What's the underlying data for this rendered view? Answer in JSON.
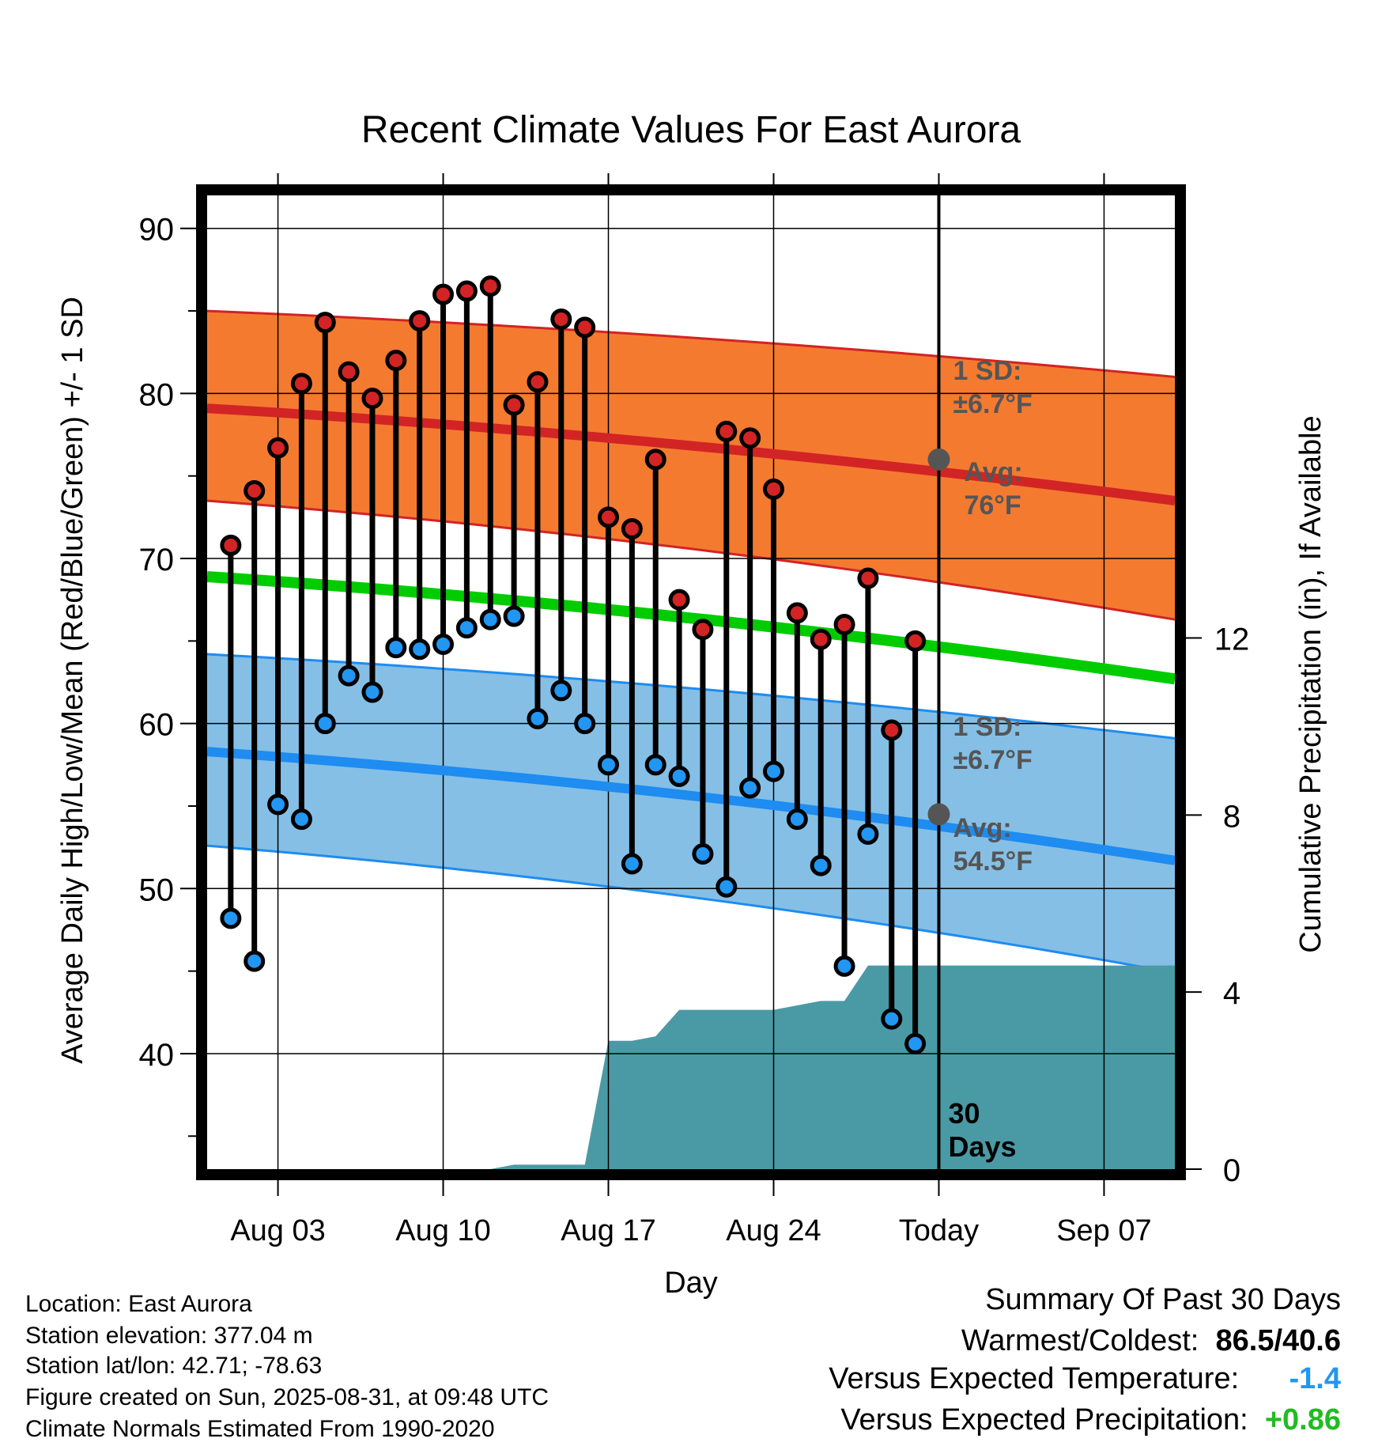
{
  "chart_data": {
    "type": "line",
    "title": "Recent Climate Values For East Aurora",
    "xlabel": "Day",
    "ylabel": "Average Daily High/Low/Mean (Red/Blue/Green) +/- 1 SD",
    "y2label": "Cumulative Precipitation (in), If Available",
    "ylim": [
      33,
      92
    ],
    "y2lim": [
      0,
      22
    ],
    "y_ticks": [
      "40",
      "50",
      "60",
      "70",
      "80",
      "90"
    ],
    "y2_ticks": [
      "0",
      "4",
      "8",
      "12"
    ],
    "x_ticks": [
      "Aug 03",
      "Aug 10",
      "Aug 17",
      "Aug 24",
      "Today",
      "Sep 07"
    ],
    "today_label": "30\nDays",
    "grid": true,
    "days": [
      "Aug 01",
      "Aug 02",
      "Aug 03",
      "Aug 04",
      "Aug 05",
      "Aug 06",
      "Aug 07",
      "Aug 08",
      "Aug 09",
      "Aug 10",
      "Aug 11",
      "Aug 12",
      "Aug 13",
      "Aug 14",
      "Aug 15",
      "Aug 16",
      "Aug 17",
      "Aug 18",
      "Aug 19",
      "Aug 20",
      "Aug 21",
      "Aug 22",
      "Aug 23",
      "Aug 24",
      "Aug 25",
      "Aug 26",
      "Aug 27",
      "Aug 28",
      "Aug 29",
      "Aug 30"
    ],
    "highs": [
      70.8,
      74.1,
      76.7,
      80.6,
      84.3,
      81.3,
      79.7,
      82.0,
      84.4,
      86.0,
      86.2,
      86.5,
      79.3,
      80.7,
      84.5,
      84.0,
      72.5,
      71.8,
      76.0,
      67.5,
      65.7,
      77.7,
      77.3,
      74.2,
      66.7,
      65.1,
      66.0,
      68.8,
      59.6,
      65.0
    ],
    "lows": [
      48.2,
      45.6,
      55.1,
      54.2,
      60.0,
      62.9,
      61.9,
      64.6,
      64.5,
      64.8,
      65.8,
      66.3,
      66.5,
      60.3,
      62.0,
      60.0,
      57.5,
      51.5,
      57.5,
      56.8,
      52.1,
      50.1,
      56.1,
      57.1,
      54.2,
      51.4,
      45.3,
      53.3,
      42.1,
      40.6
    ],
    "normals_x": [
      "Jul 31",
      "Sep 10"
    ],
    "normal_high": [
      79.1,
      73.5
    ],
    "normal_high_sd": 6.7,
    "normal_high_lower": [
      73.5,
      66.3
    ],
    "normal_high_upper": [
      85.0,
      81.0
    ],
    "normal_mean": [
      68.9,
      62.7
    ],
    "normal_low": [
      58.3,
      51.7
    ],
    "normal_low_sd": 6.7,
    "normal_low_lower": [
      52.6,
      44.9
    ],
    "normal_low_upper": [
      64.2,
      59.1
    ],
    "precip_days": [
      "Aug 12",
      "Aug 13",
      "Aug 14",
      "Aug 15",
      "Aug 16",
      "Aug 17",
      "Aug 18",
      "Aug 19",
      "Aug 20",
      "Aug 21",
      "Aug 22",
      "Aug 23",
      "Aug 24",
      "Aug 25",
      "Aug 26",
      "Aug 27",
      "Aug 28",
      "Aug 29",
      "Aug 30",
      "Sep 10"
    ],
    "precip_cumulative": [
      0.0,
      0.1,
      0.1,
      0.1,
      0.1,
      2.9,
      2.9,
      3.0,
      3.6,
      3.6,
      3.6,
      3.6,
      3.6,
      3.7,
      3.8,
      3.8,
      4.6,
      4.6,
      4.6,
      4.6
    ],
    "annotations": {
      "high_sd": "1 SD:",
      "high_sd_val": "±6.7°F",
      "high_avg": "Avg:",
      "high_avg_val": "76°F",
      "low_sd": "1 SD:",
      "low_sd_val": "±6.7°F",
      "low_avg": "Avg:",
      "low_avg_val": "54.5°F",
      "today_high_avg": 76.0,
      "today_low_avg": 54.5
    },
    "colors": {
      "high_band": "#F47A30",
      "high_line": "#D22424",
      "low_band": "#85BFE6",
      "low_line": "#1E8CF0",
      "mean_line": "#00CC00",
      "precip": "#4A9AA5",
      "high_dot": "#D22424",
      "low_dot": "#2196F3"
    }
  },
  "footer": {
    "location": "Location: East Aurora",
    "elevation": "Station elevation: 377.04 m",
    "latlon": "Station lat/lon: 42.71; -78.63",
    "created": "Figure created on Sun, 2025-08-31, at 09:48 UTC",
    "normals": "Climate Normals Estimated From 1990-2020"
  },
  "summary": {
    "heading": "Summary Of Past 30 Days",
    "warm_label": "Warmest/Coldest:",
    "warmest": "86.5",
    "slash": "/",
    "coldest": "40.6",
    "temp_label": "Versus Expected Temperature:",
    "temp_value": "-1.4",
    "temp_color": "#2196F3",
    "precip_label": "Versus Expected Precipitation:",
    "precip_value": "+0.86",
    "precip_color": "#22BB22"
  }
}
